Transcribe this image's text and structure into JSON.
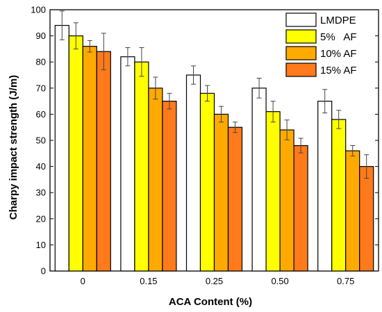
{
  "chart_data": {
    "type": "bar",
    "title": "",
    "xlabel": "ACA Content (%)",
    "ylabel": "Charpy impact strength (J/m)",
    "ylim": [
      0,
      100
    ],
    "yticks": [
      0,
      10,
      20,
      30,
      40,
      50,
      60,
      70,
      80,
      90,
      100
    ],
    "categories": [
      "0",
      "0.15",
      "0.25",
      "0.50",
      "0.75"
    ],
    "legend_position": "top-right",
    "grid": false,
    "series": [
      {
        "name": "LMDPE",
        "color": "#ffffff",
        "values": [
          94,
          82,
          75,
          70,
          65
        ],
        "errors": [
          5.5,
          3.5,
          3.5,
          3.8,
          4.5
        ]
      },
      {
        "name": "5%   AF",
        "color": "#ffff00",
        "values": [
          90,
          80,
          68,
          61,
          58
        ],
        "errors": [
          5,
          5.5,
          3,
          4,
          3.5
        ]
      },
      {
        "name": "10% AF",
        "color": "#ffaa00",
        "values": [
          86,
          70,
          60,
          54,
          46
        ],
        "errors": [
          2.2,
          4.2,
          3,
          3.8,
          2
        ]
      },
      {
        "name": "15% AF",
        "color": "#ff7a1a",
        "values": [
          84,
          65,
          55,
          48,
          40
        ],
        "errors": [
          7,
          3,
          2,
          2.8,
          4.5
        ]
      }
    ]
  }
}
